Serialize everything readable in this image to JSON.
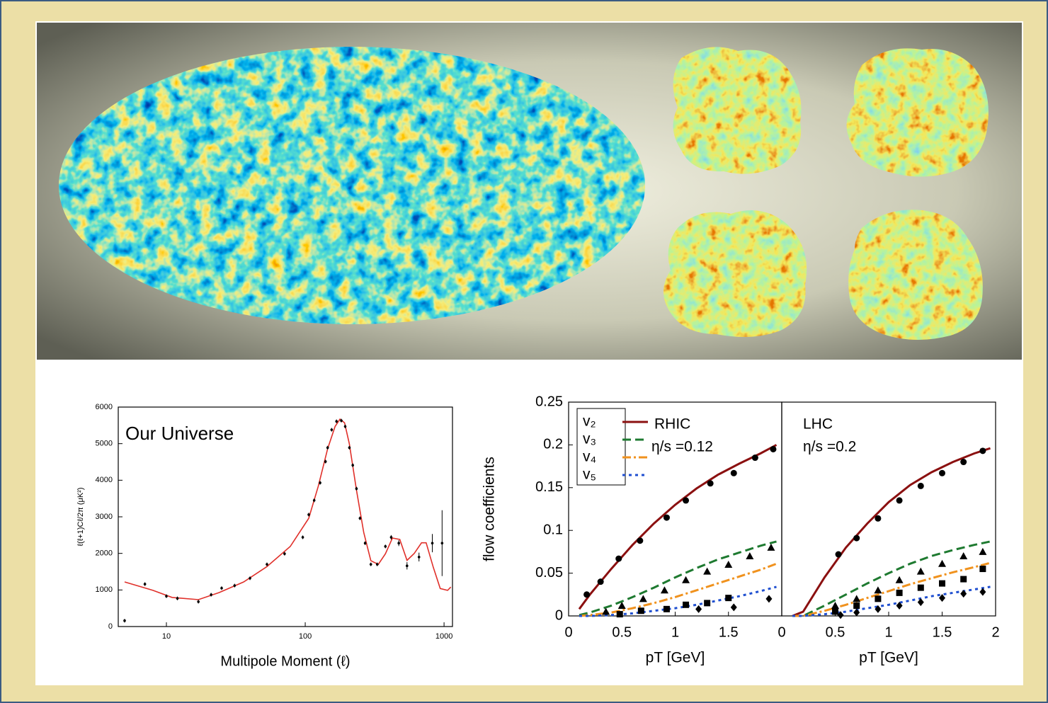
{
  "chart_data": [
    {
      "type": "scatter",
      "annotation": "Our Universe",
      "xlabel": "Multipole Moment (ℓ)",
      "ylabel": "ℓ(ℓ+1)Cℓ/2π (μK²)",
      "xscale": "log",
      "xlim": [
        4.5,
        1150
      ],
      "xticks": [
        10,
        100,
        1000
      ],
      "ylim": [
        0,
        6000
      ],
      "yticks": [
        0,
        1000,
        2000,
        3000,
        4000,
        5000,
        6000
      ],
      "series": [
        {
          "mode": "line",
          "color": "#e0302a",
          "style": "solid",
          "x": [
            5,
            8,
            11,
            17,
            24,
            36,
            53,
            78,
            106,
            124,
            145,
            164,
            178,
            192,
            208,
            234,
            264,
            297,
            336,
            378,
            425,
            480,
            541,
            610,
            688,
            743,
            837,
            938,
            1060,
            1120
          ],
          "values": [
            1220,
            990,
            795,
            735,
            930,
            1220,
            1640,
            2190,
            2960,
            3830,
            4860,
            5470,
            5670,
            5570,
            4990,
            3730,
            2570,
            1800,
            1700,
            1990,
            2420,
            2380,
            1810,
            2000,
            2290,
            2290,
            1620,
            1040,
            990,
            1080
          ]
        },
        {
          "mode": "points",
          "color": "#000000",
          "marker": "circle",
          "x": [
            5,
            7,
            10,
            12,
            17,
            21,
            25,
            31,
            40,
            53,
            71,
            96,
            106,
            116,
            128,
            140,
            145,
            155,
            168,
            182,
            194,
            208,
            220,
            234,
            248,
            270,
            297,
            330,
            378,
            416,
            472,
            541,
            660,
            823,
            968
          ],
          "values": [
            160,
            1160,
            830,
            770,
            680,
            870,
            1050,
            1120,
            1320,
            1700,
            1990,
            2440,
            3060,
            3450,
            3930,
            4510,
            4890,
            5380,
            5610,
            5630,
            5470,
            4890,
            4410,
            3770,
            2960,
            2280,
            1700,
            1700,
            2190,
            2440,
            2280,
            1660,
            1900,
            2280,
            2280
          ],
          "errors": [
            50,
            50,
            50,
            50,
            50,
            50,
            50,
            50,
            50,
            50,
            50,
            50,
            50,
            50,
            50,
            50,
            50,
            50,
            50,
            50,
            50,
            50,
            50,
            50,
            50,
            50,
            50,
            50,
            50,
            60,
            80,
            100,
            120,
            250,
            900
          ]
        }
      ]
    },
    {
      "type": "line",
      "annotations": [
        "RHIC",
        "η/s =0.12"
      ],
      "xlabel": "pT [GeV]",
      "ylabel": "flow coefficients",
      "xlim": [
        0,
        2
      ],
      "xticks": [
        0,
        0.5,
        1,
        1.5
      ],
      "ylim": [
        0,
        0.25
      ],
      "yticks": [
        0,
        0.05,
        0.1,
        0.15,
        0.2,
        0.25
      ],
      "legend": "top-left",
      "series": [
        {
          "mode": "line",
          "name": "v₂",
          "color": "#8b1010",
          "style": "solid",
          "x": [
            0.1,
            0.2,
            0.4,
            0.6,
            0.8,
            1.0,
            1.2,
            1.4,
            1.6,
            1.8,
            1.95
          ],
          "values": [
            0.008,
            0.025,
            0.055,
            0.083,
            0.108,
            0.13,
            0.149,
            0.165,
            0.178,
            0.19,
            0.2
          ]
        },
        {
          "mode": "line",
          "name": "v₃",
          "color": "#1e7a30",
          "style": "dashed",
          "x": [
            0.1,
            0.2,
            0.4,
            0.6,
            0.8,
            1.0,
            1.2,
            1.4,
            1.6,
            1.8,
            1.95
          ],
          "values": [
            0.001,
            0.004,
            0.012,
            0.022,
            0.033,
            0.045,
            0.056,
            0.066,
            0.074,
            0.082,
            0.087
          ]
        },
        {
          "mode": "line",
          "name": "v₄",
          "color": "#f0921e",
          "style": "dashdot",
          "x": [
            0.1,
            0.2,
            0.4,
            0.6,
            0.8,
            1.0,
            1.2,
            1.4,
            1.6,
            1.8,
            1.95
          ],
          "values": [
            0,
            0.001,
            0.004,
            0.009,
            0.015,
            0.022,
            0.03,
            0.038,
            0.046,
            0.054,
            0.061
          ]
        },
        {
          "mode": "line",
          "name": "v₅",
          "color": "#1f4fd0",
          "style": "dotted",
          "x": [
            0.1,
            0.2,
            0.4,
            0.6,
            0.8,
            1.0,
            1.2,
            1.4,
            1.6,
            1.8,
            1.95
          ],
          "values": [
            0,
            0,
            0.001,
            0.003,
            0.006,
            0.009,
            0.013,
            0.018,
            0.023,
            0.029,
            0.034
          ]
        },
        {
          "mode": "points",
          "color": "#000000",
          "marker": "circle",
          "x": [
            0.17,
            0.3,
            0.47,
            0.67,
            0.92,
            1.1,
            1.33,
            1.55,
            1.75,
            1.92
          ],
          "values": [
            0.025,
            0.04,
            0.067,
            0.088,
            0.115,
            0.135,
            0.155,
            0.167,
            0.185,
            0.195
          ]
        },
        {
          "mode": "points",
          "color": "#000000",
          "marker": "triangle",
          "x": [
            0.35,
            0.5,
            0.7,
            0.9,
            1.1,
            1.3,
            1.5,
            1.7,
            1.9
          ],
          "values": [
            0.005,
            0.012,
            0.02,
            0.03,
            0.042,
            0.052,
            0.06,
            0.07,
            0.08
          ]
        },
        {
          "mode": "points",
          "color": "#000000",
          "marker": "square",
          "x": [
            0.48,
            0.68,
            0.92,
            1.1,
            1.3,
            1.5
          ],
          "values": [
            0.002,
            0.006,
            0.008,
            0.013,
            0.015,
            0.021
          ]
        },
        {
          "mode": "points",
          "color": "#000000",
          "marker": "diamond",
          "x": [
            1.22,
            1.55,
            1.88
          ],
          "values": [
            0.008,
            0.01,
            0.02
          ]
        }
      ]
    },
    {
      "type": "line",
      "annotations": [
        "LHC",
        "η/s =0.2"
      ],
      "xlabel": "pT [GeV]",
      "xlim": [
        0,
        2
      ],
      "xticks": [
        0,
        0.5,
        1,
        1.5,
        2
      ],
      "ylim": [
        0,
        0.25
      ],
      "series": [
        {
          "mode": "line",
          "color": "#8b1010",
          "style": "solid",
          "x": [
            0.1,
            0.2,
            0.4,
            0.6,
            0.8,
            1.0,
            1.2,
            1.4,
            1.6,
            1.8,
            1.95
          ],
          "values": [
            0,
            0.005,
            0.045,
            0.08,
            0.108,
            0.133,
            0.153,
            0.168,
            0.18,
            0.19,
            0.196
          ]
        },
        {
          "mode": "line",
          "color": "#1e7a30",
          "style": "dashed",
          "x": [
            0.1,
            0.2,
            0.4,
            0.6,
            0.8,
            1.0,
            1.2,
            1.4,
            1.6,
            1.8,
            1.95
          ],
          "values": [
            0,
            0,
            0.012,
            0.025,
            0.038,
            0.05,
            0.061,
            0.07,
            0.077,
            0.083,
            0.087
          ]
        },
        {
          "mode": "line",
          "color": "#f0921e",
          "style": "dashdot",
          "x": [
            0.1,
            0.2,
            0.4,
            0.6,
            0.8,
            1.0,
            1.2,
            1.4,
            1.6,
            1.8,
            1.95
          ],
          "values": [
            0,
            0,
            0.006,
            0.013,
            0.021,
            0.029,
            0.037,
            0.044,
            0.051,
            0.057,
            0.062
          ]
        },
        {
          "mode": "line",
          "color": "#1f4fd0",
          "style": "dotted",
          "x": [
            0.1,
            0.2,
            0.4,
            0.6,
            0.8,
            1.0,
            1.2,
            1.4,
            1.6,
            1.8,
            1.95
          ],
          "values": [
            0,
            0,
            0.002,
            0.005,
            0.009,
            0.013,
            0.018,
            0.023,
            0.027,
            0.031,
            0.034
          ]
        },
        {
          "mode": "points",
          "color": "#000000",
          "marker": "circle",
          "x": [
            0.53,
            0.7,
            0.9,
            1.1,
            1.3,
            1.5,
            1.7,
            1.88
          ],
          "values": [
            0.072,
            0.091,
            0.114,
            0.135,
            0.152,
            0.167,
            0.18,
            0.193
          ]
        },
        {
          "mode": "points",
          "color": "#000000",
          "marker": "triangle",
          "x": [
            0.5,
            0.7,
            0.9,
            1.1,
            1.3,
            1.5,
            1.7,
            1.88
          ],
          "values": [
            0.012,
            0.02,
            0.03,
            0.042,
            0.052,
            0.061,
            0.07,
            0.075
          ]
        },
        {
          "mode": "points",
          "color": "#000000",
          "marker": "square",
          "x": [
            0.5,
            0.7,
            0.9,
            1.1,
            1.3,
            1.5,
            1.7,
            1.88
          ],
          "values": [
            0.005,
            0.012,
            0.02,
            0.027,
            0.033,
            0.038,
            0.043,
            0.055
          ]
        },
        {
          "mode": "points",
          "color": "#000000",
          "marker": "diamond",
          "x": [
            0.55,
            0.7,
            0.9,
            1.1,
            1.3,
            1.5,
            1.7,
            1.88
          ],
          "values": [
            0.001,
            0.004,
            0.008,
            0.012,
            0.016,
            0.021,
            0.026,
            0.028
          ]
        }
      ]
    }
  ]
}
